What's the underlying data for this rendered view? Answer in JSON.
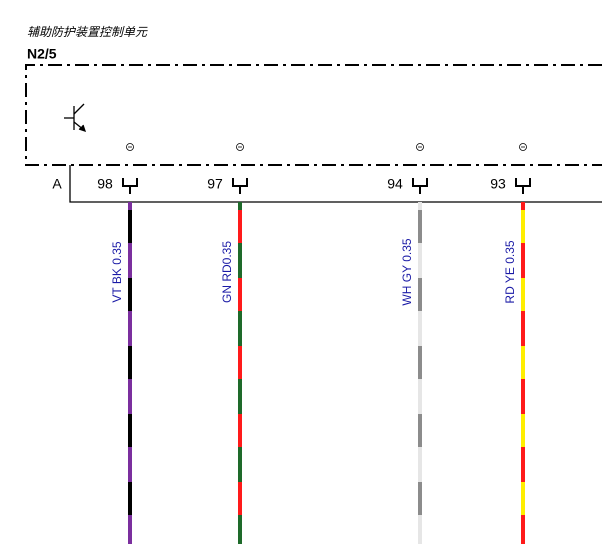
{
  "header": {
    "title": "辅助防护装置控制单元",
    "component": "N2/5"
  },
  "connector": {
    "label": "A"
  },
  "wires": [
    {
      "pin": "98",
      "label": "VT BK 0.35",
      "colors": [
        "#7b2f9e",
        "#000000"
      ]
    },
    {
      "pin": "97",
      "label": "GN RD0.35",
      "colors": [
        "#1e6a2a",
        "#ff1a1a"
      ]
    },
    {
      "pin": "94",
      "label": "WH GY 0.35",
      "colors": [
        "#e6e6e6",
        "#8c8c8c"
      ]
    },
    {
      "pin": "93",
      "label": "RD YE 0.35",
      "colors": [
        "#ff1a1a",
        "#ffee00"
      ]
    }
  ]
}
